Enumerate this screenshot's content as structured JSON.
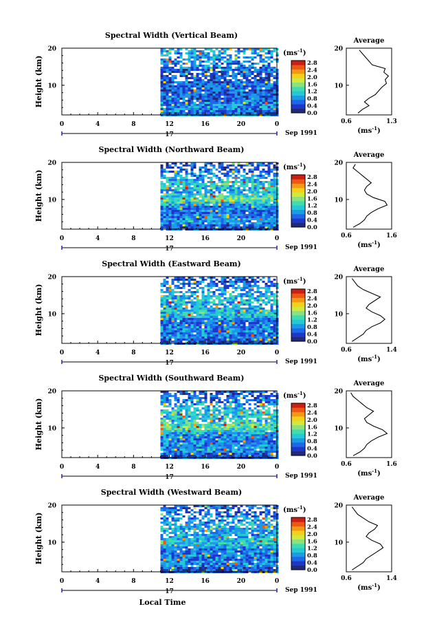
{
  "figure": {
    "xlabel": "Local Time",
    "date_label": "Sep 1991",
    "day_label": "17",
    "units_label": "(ms",
    "units_exp": "-1",
    "units_close": ")",
    "ylabel": "Height (km)",
    "avg_title": "Average"
  },
  "colorbar": {
    "ticks": [
      "2.8",
      "2.4",
      "2.0",
      "1.6",
      "1.2",
      "0.8",
      "0.4",
      "0.0"
    ],
    "colors": [
      "#202a78",
      "#1c38c8",
      "#1e66ea",
      "#1c9ae8",
      "#24c8d8",
      "#40dcb0",
      "#8ee07a",
      "#d2e83a",
      "#f2d01c",
      "#f49a12",
      "#ec5a12",
      "#cc1e12"
    ]
  },
  "chart_data": [
    {
      "type": "heatmap",
      "title": "Spectral Width (Vertical Beam)",
      "x_ticks": [
        "0",
        "4",
        "8",
        "12",
        "16",
        "20",
        "0"
      ],
      "xlim": [
        0,
        24
      ],
      "y_ticks": [
        "20",
        "10"
      ],
      "ylim": [
        2,
        20
      ],
      "data_start_hour": 11,
      "color_range": [
        0.0,
        3.0
      ],
      "profile": [
        [
          2,
          0.35
        ],
        [
          4,
          0.9
        ],
        [
          6,
          0.6
        ],
        [
          8,
          0.55
        ],
        [
          10,
          0.65
        ],
        [
          12,
          0.5
        ],
        [
          14,
          0.6
        ],
        [
          16,
          0.75
        ],
        [
          18,
          0.9
        ],
        [
          20,
          0.9
        ]
      ],
      "average": {
        "title": "Average",
        "x_ticks": [
          "0.6",
          "1.3"
        ],
        "xlim": [
          0.6,
          1.3
        ],
        "y_ticks": [
          "20",
          "10"
        ],
        "ylim": [
          2,
          20
        ],
        "points": [
          [
            2.5,
            0.78
          ],
          [
            3.5,
            0.85
          ],
          [
            4.5,
            0.95
          ],
          [
            5.5,
            0.88
          ],
          [
            6.5,
            0.95
          ],
          [
            7.5,
            1.05
          ],
          [
            8.5,
            1.1
          ],
          [
            9.5,
            1.15
          ],
          [
            10.5,
            1.22
          ],
          [
            11.5,
            1.2
          ],
          [
            12.5,
            1.25
          ],
          [
            13.5,
            1.18
          ],
          [
            14.5,
            1.2
          ],
          [
            15.5,
            1.0
          ],
          [
            16.5,
            0.95
          ],
          [
            17.5,
            0.9
          ],
          [
            18.5,
            0.85
          ],
          [
            19.5,
            0.8
          ]
        ]
      }
    },
    {
      "type": "heatmap",
      "title": "Spectral Width (Northward Beam)",
      "x_ticks": [
        "0",
        "4",
        "8",
        "12",
        "16",
        "20",
        "0"
      ],
      "xlim": [
        0,
        24
      ],
      "y_ticks": [
        "20",
        "10"
      ],
      "ylim": [
        2,
        20
      ],
      "data_start_hour": 11,
      "color_range": [
        0.0,
        3.0
      ],
      "profile": [
        [
          2,
          0.3
        ],
        [
          4,
          0.9
        ],
        [
          6,
          0.7
        ],
        [
          8,
          0.7
        ],
        [
          10,
          1.5
        ],
        [
          12,
          1.0
        ],
        [
          14,
          1.2
        ],
        [
          16,
          0.9
        ],
        [
          18,
          0.6
        ],
        [
          20,
          0.5
        ]
      ],
      "average": {
        "title": "Average",
        "x_ticks": [
          "0.6",
          "1.6"
        ],
        "xlim": [
          0.6,
          1.6
        ],
        "y_ticks": [
          "20",
          "10"
        ],
        "ylim": [
          2,
          20
        ],
        "points": [
          [
            2.5,
            0.75
          ],
          [
            3.5,
            0.9
          ],
          [
            4.5,
            1.0
          ],
          [
            5.5,
            1.05
          ],
          [
            6.5,
            1.15
          ],
          [
            7.5,
            1.3
          ],
          [
            8.5,
            1.5
          ],
          [
            9.5,
            1.45
          ],
          [
            10.5,
            1.2
          ],
          [
            11.5,
            1.05
          ],
          [
            12.5,
            1.0
          ],
          [
            13.5,
            1.05
          ],
          [
            14.5,
            1.15
          ],
          [
            15.5,
            1.05
          ],
          [
            16.5,
            0.95
          ],
          [
            17.5,
            0.85
          ],
          [
            18.5,
            0.75
          ],
          [
            19.5,
            0.8
          ]
        ]
      }
    },
    {
      "type": "heatmap",
      "title": "Spectral Width (Eastward Beam)",
      "x_ticks": [
        "0",
        "4",
        "8",
        "12",
        "16",
        "20",
        "0"
      ],
      "xlim": [
        0,
        24
      ],
      "y_ticks": [
        "20",
        "10"
      ],
      "ylim": [
        2,
        20
      ],
      "data_start_hour": 11,
      "color_range": [
        0.0,
        3.0
      ],
      "profile": [
        [
          2,
          0.3
        ],
        [
          4,
          0.8
        ],
        [
          6,
          0.7
        ],
        [
          8,
          0.7
        ],
        [
          10,
          1.2
        ],
        [
          12,
          0.9
        ],
        [
          14,
          1.1
        ],
        [
          16,
          0.9
        ],
        [
          18,
          0.6
        ],
        [
          20,
          0.5
        ]
      ],
      "average": {
        "title": "Average",
        "x_ticks": [
          "0.6",
          "1.4"
        ],
        "xlim": [
          0.6,
          1.4
        ],
        "y_ticks": [
          "20",
          "10"
        ],
        "ylim": [
          2,
          20
        ],
        "points": [
          [
            2.5,
            0.7
          ],
          [
            3.5,
            0.8
          ],
          [
            4.5,
            0.9
          ],
          [
            5.5,
            0.95
          ],
          [
            6.5,
            1.05
          ],
          [
            7.5,
            1.2
          ],
          [
            8.5,
            1.28
          ],
          [
            9.5,
            1.2
          ],
          [
            10.5,
            1.05
          ],
          [
            11.5,
            0.95
          ],
          [
            12.5,
            1.0
          ],
          [
            13.5,
            1.1
          ],
          [
            14.5,
            1.2
          ],
          [
            15.5,
            1.05
          ],
          [
            16.5,
            0.9
          ],
          [
            17.5,
            0.8
          ],
          [
            18.5,
            0.75
          ],
          [
            19.5,
            0.7
          ]
        ]
      }
    },
    {
      "type": "heatmap",
      "title": "Spectral Width (Southward Beam)",
      "x_ticks": [
        "0",
        "4",
        "8",
        "12",
        "16",
        "20",
        "0"
      ],
      "xlim": [
        0,
        24
      ],
      "y_ticks": [
        "20",
        "10"
      ],
      "ylim": [
        2,
        20
      ],
      "data_start_hour": 11,
      "color_range": [
        0.0,
        3.0
      ],
      "profile": [
        [
          2,
          0.3
        ],
        [
          4,
          0.9
        ],
        [
          6,
          0.8
        ],
        [
          8,
          0.8
        ],
        [
          10,
          1.5
        ],
        [
          12,
          1.1
        ],
        [
          14,
          1.2
        ],
        [
          16,
          0.9
        ],
        [
          18,
          0.6
        ],
        [
          20,
          0.5
        ]
      ],
      "average": {
        "title": "Average",
        "x_ticks": [
          "0.6",
          "1.6"
        ],
        "xlim": [
          0.6,
          1.6
        ],
        "y_ticks": [
          "20",
          "10"
        ],
        "ylim": [
          2,
          20
        ],
        "points": [
          [
            2.5,
            0.75
          ],
          [
            3.5,
            0.9
          ],
          [
            4.5,
            1.0
          ],
          [
            5.5,
            1.05
          ],
          [
            6.5,
            1.15
          ],
          [
            7.5,
            1.3
          ],
          [
            8.5,
            1.5
          ],
          [
            9.5,
            1.4
          ],
          [
            10.5,
            1.2
          ],
          [
            11.5,
            1.05
          ],
          [
            12.5,
            1.0
          ],
          [
            13.5,
            1.1
          ],
          [
            14.5,
            1.2
          ],
          [
            15.5,
            1.05
          ],
          [
            16.5,
            0.95
          ],
          [
            17.5,
            0.85
          ],
          [
            18.5,
            0.75
          ],
          [
            19.5,
            0.7
          ]
        ]
      }
    },
    {
      "type": "heatmap",
      "title": "Spectral Width (Westward Beam)",
      "x_ticks": [
        "0",
        "4",
        "8",
        "12",
        "16",
        "20",
        "0"
      ],
      "xlim": [
        0,
        24
      ],
      "y_ticks": [
        "20",
        "10"
      ],
      "ylim": [
        2,
        20
      ],
      "data_start_hour": 11,
      "color_range": [
        0.0,
        3.0
      ],
      "profile": [
        [
          2,
          0.3
        ],
        [
          4,
          0.8
        ],
        [
          6,
          0.7
        ],
        [
          8,
          0.7
        ],
        [
          10,
          1.2
        ],
        [
          12,
          0.9
        ],
        [
          14,
          1.0
        ],
        [
          16,
          0.8
        ],
        [
          18,
          0.6
        ],
        [
          20,
          0.5
        ]
      ],
      "average": {
        "title": "Average",
        "x_ticks": [
          "0.6",
          "1.4"
        ],
        "xlim": [
          0.6,
          1.4
        ],
        "y_ticks": [
          "20",
          "10"
        ],
        "ylim": [
          2,
          20
        ],
        "points": [
          [
            2.5,
            0.7
          ],
          [
            3.5,
            0.8
          ],
          [
            4.5,
            0.9
          ],
          [
            5.5,
            0.95
          ],
          [
            6.5,
            1.05
          ],
          [
            7.5,
            1.15
          ],
          [
            8.5,
            1.25
          ],
          [
            9.5,
            1.2
          ],
          [
            10.5,
            1.05
          ],
          [
            11.5,
            0.95
          ],
          [
            12.5,
            1.0
          ],
          [
            13.5,
            1.1
          ],
          [
            14.5,
            1.15
          ],
          [
            15.5,
            1.0
          ],
          [
            16.5,
            0.9
          ],
          [
            17.5,
            0.8
          ],
          [
            18.5,
            0.75
          ],
          [
            19.5,
            0.7
          ]
        ]
      }
    }
  ]
}
